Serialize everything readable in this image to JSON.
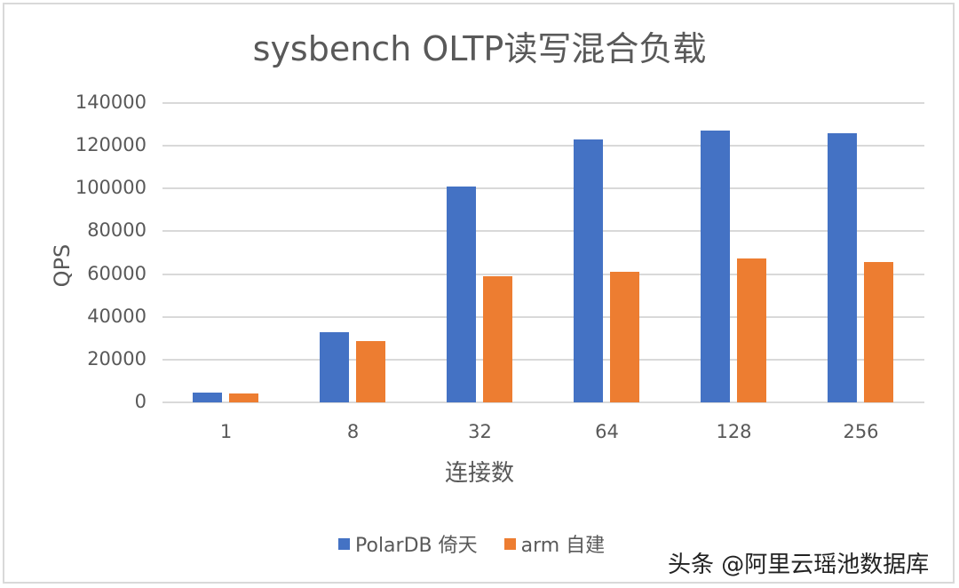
{
  "chart_data": {
    "type": "bar",
    "title": "sysbench OLTP读写混合负载",
    "xlabel": "连接数",
    "ylabel": "QPS",
    "categories": [
      "1",
      "8",
      "32",
      "64",
      "128",
      "256"
    ],
    "series": [
      {
        "name": "PolarDB 倚天",
        "color": "#4472c4",
        "values": [
          4500,
          33000,
          101000,
          123000,
          127000,
          126000
        ]
      },
      {
        "name": "arm 自建",
        "color": "#ed7d31",
        "values": [
          4200,
          28700,
          59000,
          61000,
          67300,
          65600
        ]
      }
    ],
    "ylim": [
      0,
      140000
    ],
    "yticks": [
      "0",
      "20000",
      "40000",
      "60000",
      "80000",
      "100000",
      "120000",
      "140000"
    ],
    "grid": true,
    "legend_position": "bottom"
  },
  "watermark": "头条 @阿里云瑶池数据库"
}
